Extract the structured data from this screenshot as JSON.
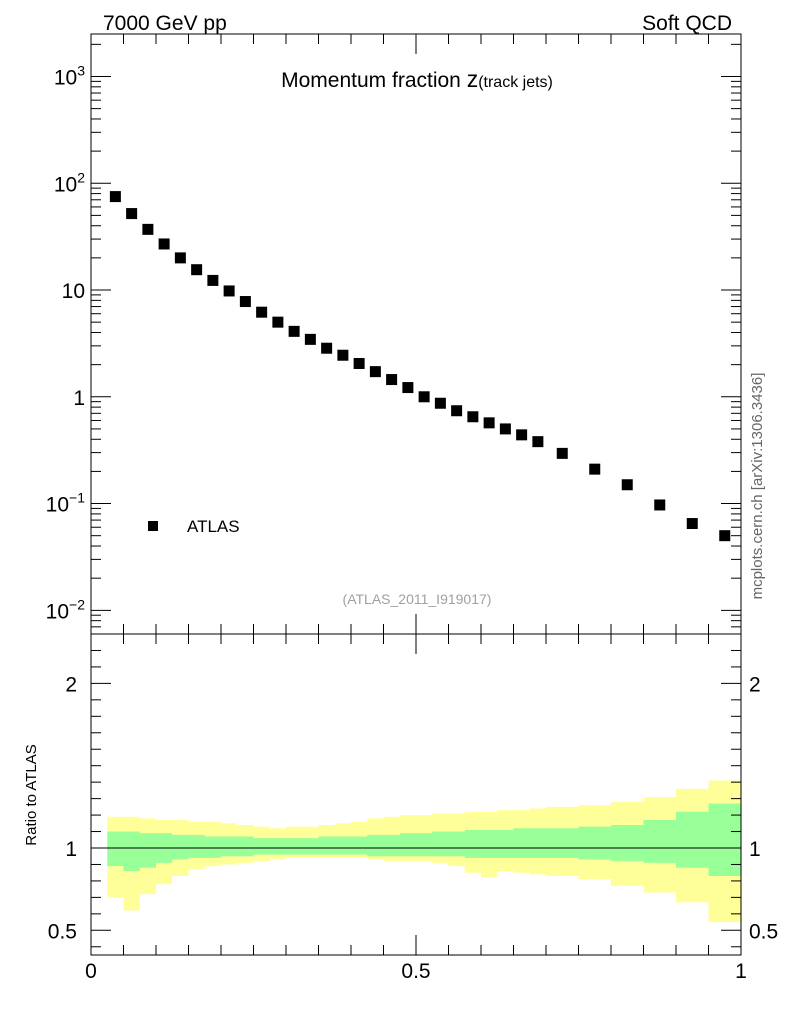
{
  "header": {
    "left": "7000 GeV pp",
    "right": "Soft QCD"
  },
  "side_label": "mcplots.cern.ch [arXiv:1306.3436]",
  "colors": {
    "data_marker": "#000000",
    "band_inner": "#99ff99",
    "band_outer": "#ffff99",
    "ref_label": "#a0a0a0"
  },
  "chart_data": [
    {
      "type": "scatter",
      "title_main": "Momentum fraction ",
      "title_var": "z",
      "title_sub": "(track jets)",
      "analysis_id": "(ATLAS_2011_I919017)",
      "yscale": "log",
      "xlim": [
        0,
        1
      ],
      "ylim": [
        0.006,
        2500
      ],
      "yticks": [
        {
          "value": 1000,
          "base": "10",
          "exp": "3"
        },
        {
          "value": 100,
          "base": "10",
          "exp": "2"
        },
        {
          "value": 10,
          "label": "10"
        },
        {
          "value": 1,
          "label": "1"
        },
        {
          "value": 0.1,
          "base": "10",
          "exp": "−1"
        },
        {
          "value": 0.01,
          "base": "10",
          "exp": "−2"
        }
      ],
      "legend": {
        "position": "lower-left",
        "label": "ATLAS"
      },
      "series": [
        {
          "name": "ATLAS",
          "x": [
            0.0375,
            0.0625,
            0.0875,
            0.1125,
            0.1375,
            0.1625,
            0.1875,
            0.2125,
            0.2375,
            0.2625,
            0.2875,
            0.3125,
            0.3375,
            0.3625,
            0.3875,
            0.4125,
            0.4375,
            0.4625,
            0.4875,
            0.5125,
            0.5375,
            0.5625,
            0.5875,
            0.6125,
            0.6375,
            0.6625,
            0.6875,
            0.725,
            0.775,
            0.825,
            0.875,
            0.925,
            0.975
          ],
          "y": [
            75,
            52,
            37,
            27,
            20,
            15.5,
            12.3,
            9.8,
            7.8,
            6.2,
            5.0,
            4.1,
            3.45,
            2.85,
            2.45,
            2.05,
            1.72,
            1.45,
            1.22,
            1.0,
            0.87,
            0.74,
            0.65,
            0.57,
            0.5,
            0.44,
            0.38,
            0.295,
            0.21,
            0.15,
            0.097,
            0.065,
            0.05
          ]
        }
      ]
    },
    {
      "type": "area",
      "ylabel": "Ratio to ATLAS",
      "xlim": [
        0,
        1
      ],
      "ylim": [
        0.35,
        2.3
      ],
      "xticks": [
        {
          "value": 0,
          "label": "0"
        },
        {
          "value": 0.5,
          "label": "0.5"
        },
        {
          "value": 1,
          "label": "1"
        }
      ],
      "yticks": [
        {
          "value": 0.5,
          "label": "0.5"
        },
        {
          "value": 1,
          "label": "1"
        },
        {
          "value": 2,
          "label": "2"
        }
      ],
      "reference_line": 1,
      "bins": [
        0.025,
        0.05,
        0.075,
        0.1,
        0.125,
        0.15,
        0.175,
        0.2,
        0.225,
        0.25,
        0.275,
        0.3,
        0.325,
        0.35,
        0.375,
        0.4,
        0.425,
        0.45,
        0.475,
        0.5,
        0.525,
        0.55,
        0.575,
        0.6,
        0.625,
        0.65,
        0.675,
        0.7,
        0.75,
        0.8,
        0.85,
        0.9,
        0.95,
        1.0
      ],
      "outer_band": {
        "upper": [
          1.19,
          1.19,
          1.18,
          1.17,
          1.17,
          1.16,
          1.16,
          1.15,
          1.14,
          1.13,
          1.12,
          1.13,
          1.13,
          1.14,
          1.15,
          1.16,
          1.18,
          1.19,
          1.2,
          1.2,
          1.21,
          1.21,
          1.22,
          1.22,
          1.23,
          1.23,
          1.24,
          1.25,
          1.26,
          1.28,
          1.31,
          1.36,
          1.41
        ],
        "lower": [
          0.7,
          0.62,
          0.72,
          0.78,
          0.83,
          0.87,
          0.89,
          0.9,
          0.91,
          0.92,
          0.93,
          0.94,
          0.94,
          0.94,
          0.94,
          0.94,
          0.93,
          0.92,
          0.92,
          0.92,
          0.91,
          0.89,
          0.85,
          0.82,
          0.86,
          0.85,
          0.84,
          0.83,
          0.81,
          0.77,
          0.73,
          0.67,
          0.55
        ]
      },
      "inner_band": {
        "upper": [
          1.1,
          1.1,
          1.09,
          1.09,
          1.08,
          1.08,
          1.07,
          1.07,
          1.07,
          1.06,
          1.06,
          1.06,
          1.06,
          1.07,
          1.07,
          1.07,
          1.08,
          1.08,
          1.09,
          1.09,
          1.1,
          1.1,
          1.11,
          1.11,
          1.11,
          1.12,
          1.12,
          1.12,
          1.13,
          1.14,
          1.17,
          1.22,
          1.27
        ],
        "lower": [
          0.89,
          0.86,
          0.88,
          0.91,
          0.93,
          0.94,
          0.94,
          0.95,
          0.95,
          0.96,
          0.96,
          0.96,
          0.96,
          0.96,
          0.96,
          0.96,
          0.95,
          0.95,
          0.95,
          0.95,
          0.95,
          0.95,
          0.94,
          0.94,
          0.94,
          0.94,
          0.94,
          0.94,
          0.93,
          0.92,
          0.91,
          0.88,
          0.83
        ]
      }
    }
  ]
}
